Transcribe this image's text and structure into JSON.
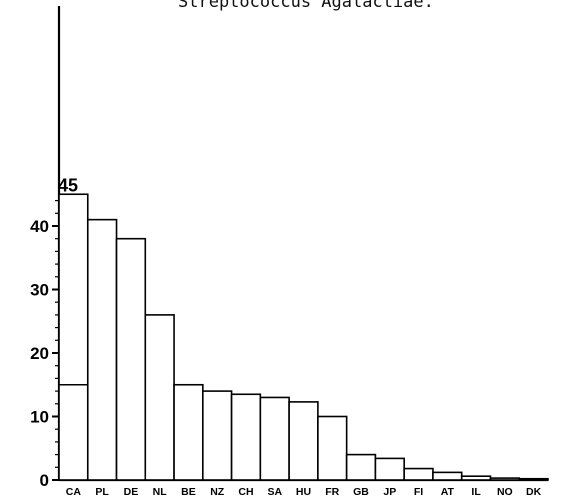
{
  "chart_data": {
    "type": "bar",
    "title": "Streptococcus Agalactiae.",
    "xlabel": "",
    "ylabel": "",
    "ylim": [
      0,
      45
    ],
    "yticks": [
      0,
      10,
      20,
      30,
      40
    ],
    "grid": false,
    "categories": [
      "CA",
      "PL",
      "DE",
      "NL",
      "BE",
      "NZ",
      "CH",
      "SA",
      "HU",
      "FR",
      "GB",
      "JP",
      "FI",
      "AT",
      "IL",
      "NO",
      "DK"
    ],
    "values": [
      45,
      41,
      38,
      26,
      15,
      14,
      13.5,
      13,
      12.3,
      10,
      4,
      3.4,
      1.8,
      1.2,
      0.6,
      0.3,
      0.2
    ],
    "inner_marks": [
      {
        "category": "CA",
        "value": 15
      }
    ],
    "data_labels": [
      {
        "category": "CA",
        "text": "45"
      }
    ],
    "colors": {
      "bar_fill": "#ffffff",
      "bar_stroke": "#000000",
      "axis": "#000000"
    }
  }
}
